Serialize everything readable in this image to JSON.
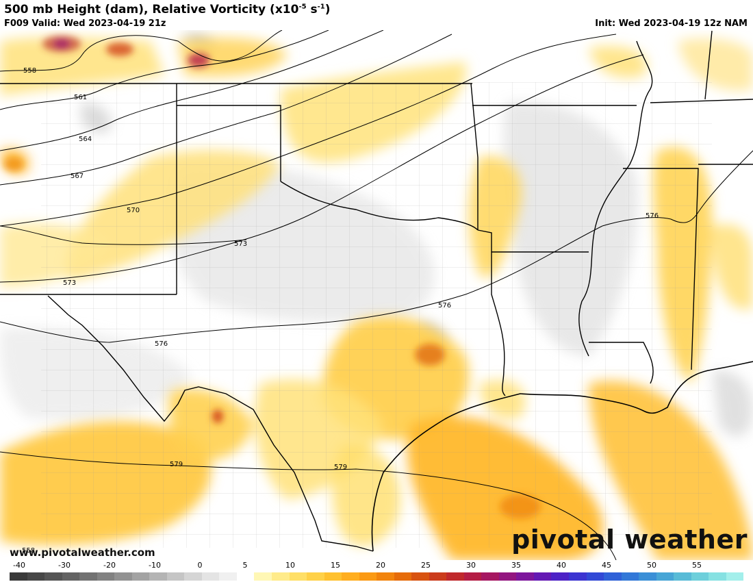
{
  "header": {
    "title_main": "500 mb Height (dam), Relative Vorticity (x10",
    "title_exp1": "-5",
    "title_mid": " s",
    "title_exp2": "-1",
    "title_end": ")",
    "valid": "F009 Valid: Wed 2023-04-19 21z",
    "init": "Init: Wed 2023-04-19 12z NAM"
  },
  "contour_labels": [
    "558",
    "561",
    "564",
    "567",
    "570",
    "573",
    "573",
    "576",
    "576",
    "576",
    "579",
    "579",
    "558"
  ],
  "footer": {
    "url": "www.pivotalweather.com",
    "brand": "pivotal weather"
  },
  "colorbar": {
    "ticks": [
      "-40",
      "-30",
      "-20",
      "-10",
      "0",
      "5",
      "10",
      "15",
      "20",
      "25",
      "30",
      "35",
      "40",
      "45",
      "50",
      "55"
    ],
    "colors": [
      "#3a3a3a",
      "#474747",
      "#555555",
      "#636363",
      "#727272",
      "#828282",
      "#929292",
      "#a3a3a3",
      "#b4b4b4",
      "#c5c5c5",
      "#d5d5d5",
      "#e4e4e4",
      "#f0f0f0",
      "#ffffff",
      "#fff7b5",
      "#ffeb8a",
      "#ffdf66",
      "#ffd148",
      "#ffc12f",
      "#ffae1f",
      "#fb9a14",
      "#f2840d",
      "#e66c0a",
      "#d85310",
      "#cb3c1c",
      "#c0292c",
      "#b41d45",
      "#a61761",
      "#931680",
      "#7d169c",
      "#6419b4",
      "#4d22c6",
      "#3c34d1",
      "#3249d6",
      "#2f61d8",
      "#3278d8",
      "#3a8fd7",
      "#47a5d6",
      "#58bbd7",
      "#6dcfdb",
      "#86e1e2",
      "#a3efeb"
    ]
  }
}
